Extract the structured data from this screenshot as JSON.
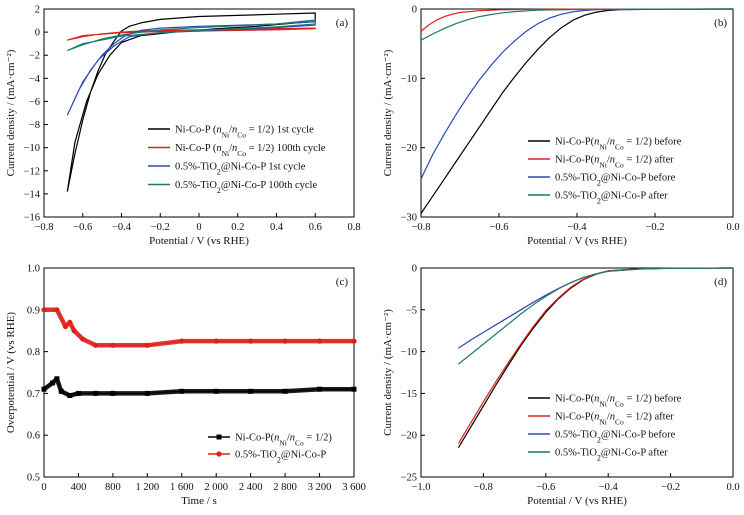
{
  "chart_data": [
    {
      "panel": "(a)",
      "type": "line",
      "xlabel": "Potential / V (vs RHE)",
      "ylabel": "Current density / (mA·cm⁻²)",
      "xlim": [
        -0.8,
        0.8
      ],
      "ylim": [
        -16,
        2
      ],
      "xticks": [
        -0.8,
        -0.6,
        -0.4,
        -0.2,
        0,
        0.2,
        0.4,
        0.6,
        0.8
      ],
      "xtick_labels": [
        "−0.8",
        "−0.6",
        "−0.4",
        "−0.2",
        "0",
        "0.2",
        "0.4",
        "0.6",
        "0.8"
      ],
      "yticks": [
        -16,
        -14,
        -12,
        -10,
        -8,
        -6,
        -4,
        -2,
        0,
        2
      ],
      "ytick_labels": [
        "−16",
        "−14",
        "−12",
        "−10",
        "−8",
        "−6",
        "−4",
        "−2",
        "0",
        "2"
      ],
      "legend_position": "bottom-right",
      "series": [
        {
          "name": "Ni-Co-P (nNi/nCo = 1/2) 1st cycle",
          "color": "#000000",
          "x": [
            -0.68,
            -0.64,
            -0.6,
            -0.56,
            -0.52,
            -0.48,
            -0.44,
            -0.4,
            -0.36,
            -0.3,
            -0.2,
            0,
            0.2,
            0.4,
            0.6,
            0.6,
            0.5,
            0.3,
            0.1,
            -0.1,
            -0.3,
            -0.4,
            -0.46,
            -0.52,
            -0.58,
            -0.64,
            -0.68
          ],
          "y": [
            -13.8,
            -10.5,
            -7.6,
            -5.2,
            -3.3,
            -1.8,
            -0.8,
            0.1,
            0.5,
            0.8,
            1.1,
            1.35,
            1.45,
            1.55,
            1.65,
            0.9,
            0.8,
            0.5,
            0.3,
            0.05,
            -0.3,
            -0.9,
            -2.0,
            -3.6,
            -6.0,
            -9.5,
            -13.8
          ]
        },
        {
          "name": "Ni-Co-P (nNi/nCo = 1/2) 100th cycle",
          "color": "#e0201b",
          "x": [
            -0.68,
            -0.6,
            -0.5,
            -0.4,
            -0.3,
            -0.2,
            0,
            0.2,
            0.4,
            0.6,
            0.6,
            0.4,
            0.2,
            0,
            -0.2,
            -0.4,
            -0.6,
            -0.68
          ],
          "y": [
            -0.7,
            -0.4,
            -0.15,
            0.0,
            0.1,
            0.15,
            0.2,
            0.25,
            0.3,
            0.35,
            0.3,
            0.2,
            0.15,
            0.1,
            0.05,
            -0.05,
            -0.3,
            -0.7
          ]
        },
        {
          "name": "0.5%-TiO2@Ni-Co-P 1st cycle",
          "color": "#2a48b8",
          "x": [
            -0.68,
            -0.62,
            -0.56,
            -0.5,
            -0.44,
            -0.38,
            -0.3,
            -0.2,
            0,
            0.2,
            0.4,
            0.6,
            0.6,
            0.4,
            0.2,
            0,
            -0.2,
            -0.36,
            -0.44,
            -0.52,
            -0.6,
            -0.68
          ],
          "y": [
            -7.2,
            -5.0,
            -3.3,
            -2.0,
            -1.0,
            -0.3,
            0.15,
            0.35,
            0.5,
            0.6,
            0.7,
            0.9,
            0.6,
            0.4,
            0.25,
            0.1,
            -0.05,
            -0.4,
            -1.2,
            -2.4,
            -4.3,
            -7.2
          ]
        },
        {
          "name": "0.5%-TiO2@Ni-Co-P 100th cycle",
          "color": "#1f7a6a",
          "x": [
            -0.68,
            -0.6,
            -0.5,
            -0.4,
            -0.3,
            -0.2,
            0,
            0.2,
            0.4,
            0.6,
            0.6,
            0.4,
            0.2,
            0,
            -0.2,
            -0.4,
            -0.6,
            -0.68
          ],
          "y": [
            -1.6,
            -1.1,
            -0.6,
            -0.25,
            0.0,
            0.2,
            0.4,
            0.55,
            0.7,
            1.05,
            0.7,
            0.45,
            0.3,
            0.15,
            -0.05,
            -0.35,
            -1.0,
            -1.6
          ]
        }
      ]
    },
    {
      "panel": "(b)",
      "type": "line",
      "xlabel": "Potential / V (vs RHE)",
      "ylabel": "Current density / (mA·cm⁻²)",
      "xlim": [
        -0.8,
        0.0
      ],
      "ylim": [
        -30,
        0
      ],
      "xticks": [
        -0.8,
        -0.6,
        -0.4,
        -0.2,
        0.0
      ],
      "xtick_labels": [
        "−0.8",
        "−0.6",
        "−0.4",
        "−0.2",
        "0.0"
      ],
      "yticks": [
        -30,
        -20,
        -10,
        0
      ],
      "ytick_labels": [
        "−30",
        "−20",
        "−10",
        "0"
      ],
      "legend_position": "bottom-right",
      "series": [
        {
          "name": "Ni-Co-P(nNi/nCo = 1/2) before",
          "color": "#000000",
          "x": [
            -0.8,
            -0.77,
            -0.74,
            -0.71,
            -0.68,
            -0.65,
            -0.62,
            -0.59,
            -0.56,
            -0.53,
            -0.5,
            -0.47,
            -0.44,
            -0.41,
            -0.38,
            -0.35,
            -0.32,
            -0.29,
            -0.2,
            -0.1,
            0.0
          ],
          "y": [
            -29.5,
            -27,
            -24.5,
            -22,
            -19.5,
            -17,
            -14.5,
            -12,
            -9.8,
            -7.7,
            -5.8,
            -4.1,
            -2.7,
            -1.6,
            -0.9,
            -0.45,
            -0.2,
            -0.1,
            -0.04,
            -0.02,
            0
          ]
        },
        {
          "name": "Ni-Co-P(nNi/nCo = 1/2) after",
          "color": "#e0201b",
          "x": [
            -0.8,
            -0.78,
            -0.76,
            -0.74,
            -0.72,
            -0.7,
            -0.65,
            -0.6,
            -0.5,
            -0.4,
            -0.2,
            0.0
          ],
          "y": [
            -3.2,
            -2.3,
            -1.6,
            -1.1,
            -0.75,
            -0.5,
            -0.25,
            -0.12,
            -0.05,
            -0.02,
            -0.01,
            0
          ]
        },
        {
          "name": "0.5%-TiO2@Ni-Co-P before",
          "color": "#2a48b8",
          "x": [
            -0.8,
            -0.77,
            -0.74,
            -0.71,
            -0.68,
            -0.65,
            -0.62,
            -0.59,
            -0.56,
            -0.53,
            -0.5,
            -0.47,
            -0.44,
            -0.41,
            -0.38,
            -0.35,
            -0.3,
            -0.2,
            -0.1,
            0.0
          ],
          "y": [
            -24.5,
            -21,
            -18,
            -15.2,
            -12.6,
            -10.2,
            -8.1,
            -6.2,
            -4.6,
            -3.2,
            -2.1,
            -1.3,
            -0.75,
            -0.4,
            -0.2,
            -0.1,
            -0.05,
            -0.02,
            -0.01,
            0
          ]
        },
        {
          "name": "0.5%-TiO2@Ni-Co-P after",
          "color": "#1f7a6a",
          "x": [
            -0.8,
            -0.77,
            -0.74,
            -0.71,
            -0.68,
            -0.65,
            -0.62,
            -0.59,
            -0.56,
            -0.5,
            -0.4,
            -0.2,
            0.0
          ],
          "y": [
            -4.5,
            -3.6,
            -2.8,
            -2.1,
            -1.55,
            -1.1,
            -0.8,
            -0.55,
            -0.38,
            -0.18,
            -0.07,
            -0.02,
            0
          ]
        }
      ]
    },
    {
      "panel": "(c)",
      "type": "line",
      "xlabel": "Time / s",
      "ylabel": "Overpotential / V (vs RHE)",
      "xlim": [
        0,
        3600
      ],
      "ylim": [
        0.5,
        1.0
      ],
      "xticks": [
        0,
        400,
        800,
        1200,
        1600,
        2000,
        2400,
        2800,
        3200,
        3600
      ],
      "xtick_labels": [
        "0",
        "400",
        "800",
        "1 200",
        "1 600",
        "2 000",
        "2 400",
        "2 800",
        "3 200",
        "3 600"
      ],
      "yticks": [
        0.5,
        0.6,
        0.7,
        0.8,
        0.9,
        1.0
      ],
      "ytick_labels": [
        "0.5",
        "0.6",
        "0.7",
        "0.8",
        "0.9",
        "1.0"
      ],
      "legend_position": "bottom-right",
      "series": [
        {
          "name": "Ni-Co-P(nNi/nCo = 1/2)",
          "color": "#000000",
          "marker": "square",
          "x": [
            0,
            100,
            150,
            200,
            300,
            400,
            600,
            800,
            1200,
            1600,
            2000,
            2400,
            2800,
            3200,
            3600
          ],
          "y": [
            0.71,
            0.725,
            0.735,
            0.705,
            0.695,
            0.7,
            0.7,
            0.7,
            0.7,
            0.705,
            0.705,
            0.705,
            0.705,
            0.71,
            0.71
          ]
        },
        {
          "name": "0.5%-TiO2@Ni-Co-P",
          "color": "#e0201b",
          "marker": "circle",
          "x": [
            0,
            150,
            250,
            300,
            350,
            450,
            600,
            800,
            1200,
            1600,
            2000,
            2400,
            2800,
            3200,
            3600
          ],
          "y": [
            0.9,
            0.9,
            0.86,
            0.87,
            0.85,
            0.83,
            0.815,
            0.815,
            0.815,
            0.825,
            0.825,
            0.825,
            0.825,
            0.825,
            0.825
          ]
        }
      ]
    },
    {
      "panel": "(d)",
      "type": "line",
      "xlabel": "Potential / V (vs RHE)",
      "ylabel": "Current density / (mA·cm⁻²)",
      "xlim": [
        -1.0,
        0.0
      ],
      "ylim": [
        -25,
        0
      ],
      "xticks": [
        -1.0,
        -0.8,
        -0.6,
        -0.4,
        -0.2,
        0.0
      ],
      "xtick_labels": [
        "−1.0",
        "−0.8",
        "−0.6",
        "−0.4",
        "−0.2",
        "0.0"
      ],
      "yticks": [
        -25,
        -20,
        -15,
        -10,
        -5,
        0
      ],
      "ytick_labels": [
        "−25",
        "−20",
        "−15",
        "−10",
        "−5",
        "0"
      ],
      "legend_position": "bottom-right",
      "series": [
        {
          "name": "Ni-Co-P(nNi/nCo = 1/2) before",
          "color": "#000000",
          "x": [
            -0.88,
            -0.84,
            -0.8,
            -0.76,
            -0.72,
            -0.68,
            -0.64,
            -0.6,
            -0.56,
            -0.52,
            -0.48,
            -0.44,
            -0.4,
            -0.3,
            -0.2,
            0.0
          ],
          "y": [
            -21.5,
            -19,
            -16.5,
            -14,
            -11.6,
            -9.3,
            -7.2,
            -5.3,
            -3.7,
            -2.4,
            -1.4,
            -0.75,
            -0.35,
            -0.1,
            -0.03,
            0
          ]
        },
        {
          "name": "Ni-Co-P(nNi/nCo = 1/2) after",
          "color": "#e0201b",
          "x": [
            -0.88,
            -0.84,
            -0.8,
            -0.76,
            -0.72,
            -0.68,
            -0.64,
            -0.6,
            -0.56,
            -0.52,
            -0.48,
            -0.44,
            -0.4,
            -0.3,
            -0.2,
            0.0
          ],
          "y": [
            -21,
            -18.5,
            -16,
            -13.6,
            -11.3,
            -9.1,
            -7.0,
            -5.1,
            -3.6,
            -2.3,
            -1.35,
            -0.7,
            -0.33,
            -0.1,
            -0.03,
            0
          ]
        },
        {
          "name": "0.5%-TiO2@Ni-Co-P before",
          "color": "#2a48b8",
          "x": [
            -0.88,
            -0.84,
            -0.8,
            -0.76,
            -0.72,
            -0.68,
            -0.64,
            -0.6,
            -0.56,
            -0.52,
            -0.48,
            -0.44,
            -0.4,
            -0.3,
            -0.2,
            0.0
          ],
          "y": [
            -9.6,
            -8.6,
            -7.7,
            -6.8,
            -5.9,
            -5.0,
            -4.1,
            -3.25,
            -2.45,
            -1.75,
            -1.15,
            -0.7,
            -0.4,
            -0.12,
            -0.04,
            0
          ]
        },
        {
          "name": "0.5%-TiO2@Ni-Co-P after",
          "color": "#1f7a6a",
          "x": [
            -0.88,
            -0.84,
            -0.8,
            -0.76,
            -0.72,
            -0.68,
            -0.64,
            -0.6,
            -0.56,
            -0.52,
            -0.48,
            -0.44,
            -0.4,
            -0.3,
            -0.2,
            0.0
          ],
          "y": [
            -11.5,
            -10.3,
            -9.1,
            -7.9,
            -6.7,
            -5.5,
            -4.4,
            -3.4,
            -2.5,
            -1.75,
            -1.15,
            -0.7,
            -0.4,
            -0.12,
            -0.04,
            0
          ]
        }
      ]
    }
  ]
}
